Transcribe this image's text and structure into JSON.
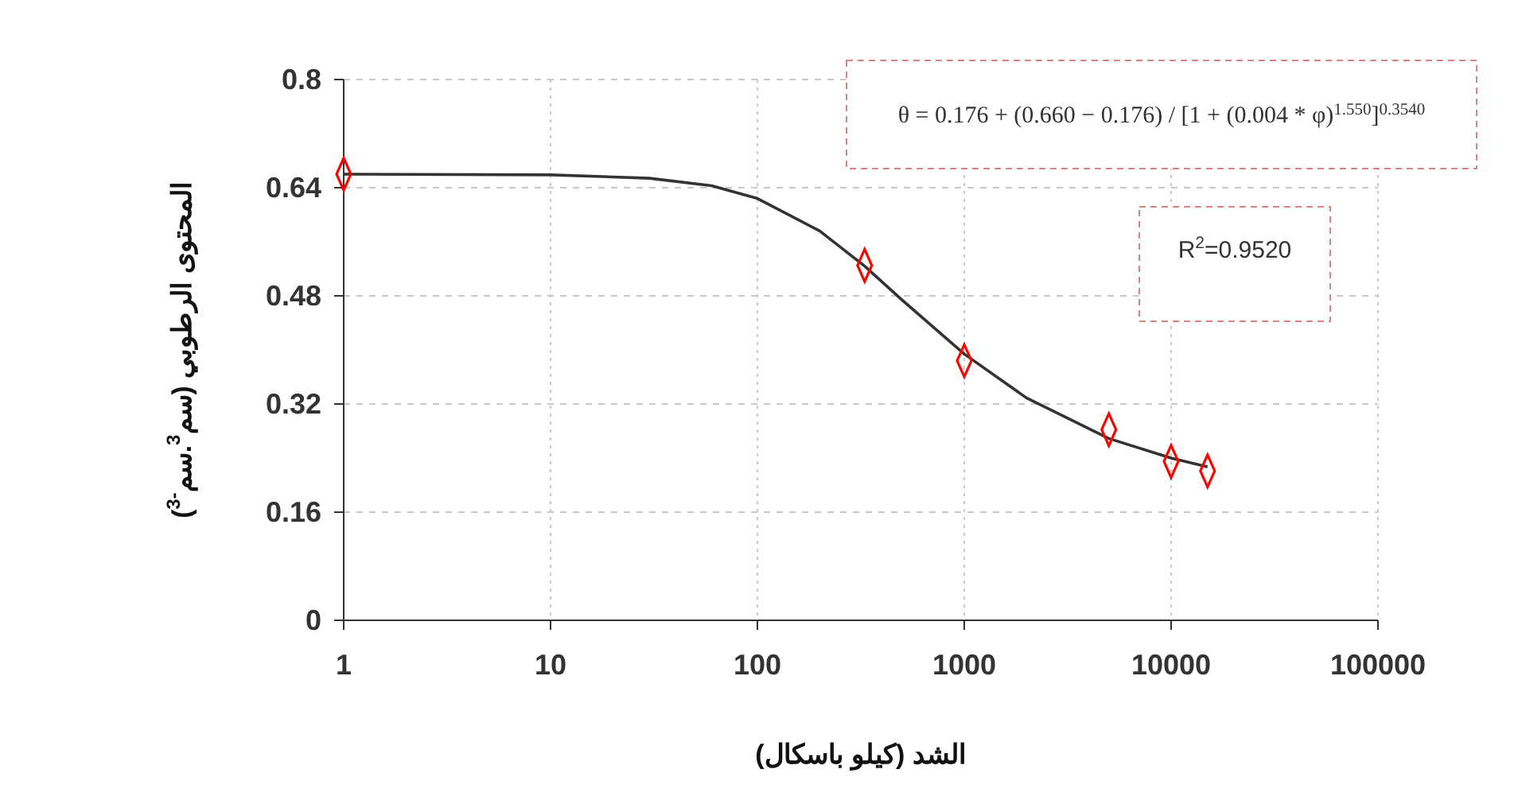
{
  "chart_data": {
    "type": "scatter",
    "xlabel": "الشد (كيلو باسكال)",
    "ylabel": "المحتوى الرطوبي (سم$^{3}$.سم$^{-3}$)",
    "log": "x",
    "xlim": [
      1,
      100000
    ],
    "xticks": [
      1,
      10,
      100,
      1000,
      10000,
      100000
    ],
    "ylim": [
      0,
      0.8
    ],
    "yticks": [
      0,
      0.16,
      0.32,
      0.48,
      0.64,
      0.8
    ],
    "grid": true,
    "series": [
      {
        "type": "line",
        "color": "#333333",
        "marker": "none",
        "x": [
          1,
          10,
          30,
          60,
          100,
          200,
          330,
          500,
          1000,
          2000,
          5000,
          10000,
          15000
        ],
        "values": [
          0.66,
          0.659,
          0.654,
          0.643,
          0.624,
          0.576,
          0.524,
          0.474,
          0.394,
          0.329,
          0.269,
          0.24,
          0.227
        ]
      },
      {
        "color": "#ff0000",
        "marker": "diamond",
        "x": [
          1,
          330,
          1000,
          5000,
          10000,
          15000
        ],
        "values": [
          0.66,
          0.525,
          0.384,
          0.282,
          0.235,
          0.221
        ]
      }
    ],
    "annotations": [
      "θ = 0.176 + (0.660 − 0.176) / [1 + (0.004 * φ)$^{1.550}$]$^{0.3540}$",
      "R$^{2}$=0.9520"
    ]
  }
}
